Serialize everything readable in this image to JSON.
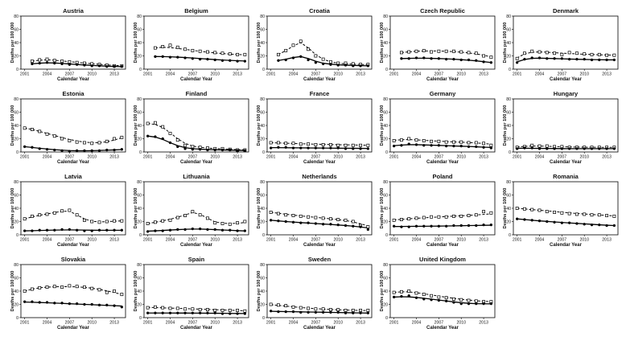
{
  "chart_data": {
    "type": "line",
    "small_multiples": true,
    "xlabel": "Calendar Year",
    "ylabel": "Deaths per 100 000",
    "xlim": [
      2000.5,
      2014.5
    ],
    "ylim": [
      0,
      80
    ],
    "xticks": [
      2001,
      2004,
      2007,
      2010,
      2013
    ],
    "yticks": [
      0,
      20,
      40,
      60,
      80
    ],
    "x": [
      2001,
      2002,
      2003,
      2004,
      2005,
      2006,
      2007,
      2008,
      2009,
      2010,
      2011,
      2012,
      2013,
      2014
    ],
    "series_styles": {
      "a": "filled circles with solid fitted line",
      "b": "open squares with dashed fitted line"
    },
    "panels": [
      {
        "title": "Austria",
        "start": 2002,
        "a": [
          8,
          9,
          10,
          9,
          8,
          7,
          7,
          6,
          5,
          5,
          4,
          4,
          4
        ],
        "fit_a": [
          8,
          9,
          9.5,
          9.3,
          8.6,
          7.8,
          7,
          6.3,
          5.6,
          5,
          4.5,
          4.1,
          3.8
        ],
        "b": [
          12,
          14,
          15,
          13,
          12,
          11,
          10,
          9,
          8,
          7,
          6,
          5,
          5
        ],
        "fit_b": [
          12,
          13.5,
          14,
          13.4,
          12.4,
          11.3,
          10.2,
          9.1,
          8.1,
          7.2,
          6.4,
          5.7,
          5.2
        ]
      },
      {
        "title": "Belgium",
        "start": 2002,
        "a": [
          19,
          19,
          18,
          18,
          17,
          16,
          15,
          15,
          14,
          13,
          13,
          12,
          12
        ],
        "fit_a": [
          19,
          18.9,
          18.6,
          18.1,
          17.5,
          16.8,
          16,
          15.2,
          14.5,
          13.8,
          13.2,
          12.7,
          12.3
        ],
        "b": [
          32,
          34,
          36,
          33,
          30,
          28,
          27,
          26,
          25,
          24,
          23,
          22,
          22
        ],
        "fit_b": [
          32,
          33,
          32.5,
          31.3,
          29.8,
          28.3,
          26.9,
          25.6,
          24.5,
          23.5,
          22.7,
          22.1,
          21.7
        ]
      },
      {
        "title": "Croatia",
        "start": 2002,
        "a": [
          13,
          14,
          17,
          19,
          14,
          10,
          8,
          7,
          6,
          6,
          5,
          5,
          5
        ],
        "fit_a": [
          13,
          15,
          17.5,
          19,
          16,
          12,
          9,
          7.5,
          6.5,
          6,
          5.6,
          5.3,
          5
        ],
        "b": [
          22,
          28,
          36,
          42,
          30,
          20,
          15,
          11,
          9,
          9,
          8,
          7,
          7
        ],
        "fit_b": [
          22,
          28,
          35,
          40,
          32,
          22,
          15,
          11,
          9,
          8,
          7.5,
          7,
          7
        ]
      },
      {
        "title": "Czech Republic",
        "start": 2002,
        "a": [
          16,
          16,
          17,
          17,
          16,
          16,
          15,
          15,
          14,
          14,
          13,
          11,
          10
        ],
        "fit_a": [
          16,
          16.3,
          16.5,
          16.5,
          16.3,
          16,
          15.6,
          15,
          14.3,
          13.5,
          12.5,
          11.3,
          10
        ],
        "b": [
          25,
          26,
          27,
          28,
          26,
          27,
          27,
          27,
          26,
          25,
          24,
          20,
          18
        ],
        "fit_b": [
          25,
          26,
          27,
          27.4,
          27.5,
          27.3,
          27,
          26.4,
          25.6,
          24.5,
          23,
          21,
          18.5
        ]
      },
      {
        "title": "Denmark",
        "start": 2001,
        "a": [
          10,
          15,
          17,
          17,
          16,
          16,
          16,
          15,
          15,
          15,
          14,
          14,
          14,
          14
        ],
        "fit_a": [
          11,
          14.5,
          16.3,
          16.6,
          16.3,
          16,
          15.6,
          15.2,
          14.9,
          14.6,
          14.4,
          14.2,
          14,
          14
        ],
        "b": [
          16,
          24,
          27,
          26,
          25,
          24,
          22,
          25,
          24,
          23,
          22,
          22,
          21,
          21
        ],
        "fit_b": [
          17,
          23,
          25.5,
          26,
          25.5,
          24.8,
          24.1,
          23.5,
          23,
          22.5,
          22.1,
          21.7,
          21.4,
          21.1
        ]
      },
      {
        "title": "Estonia",
        "start": 2001,
        "a": [
          8,
          7,
          5,
          4,
          3,
          2,
          1,
          2,
          2,
          2,
          2,
          3,
          3,
          4
        ],
        "fit_a": [
          8,
          6.8,
          5.6,
          4.5,
          3.5,
          2.7,
          2.1,
          1.8,
          1.8,
          2,
          2.3,
          2.7,
          3.1,
          3.6
        ],
        "b": [
          36,
          34,
          31,
          27,
          24,
          20,
          17,
          15,
          14,
          13,
          14,
          16,
          20,
          22
        ],
        "fit_b": [
          36,
          34,
          31,
          28,
          24.8,
          21.7,
          18.9,
          16.6,
          14.9,
          14,
          14.1,
          15.4,
          18,
          21.5
        ]
      },
      {
        "title": "Finland",
        "start": 2001,
        "a": [
          24,
          23,
          20,
          14,
          8,
          5,
          4,
          4,
          3,
          3,
          3,
          3,
          2,
          2
        ],
        "fit_a": [
          24,
          22.5,
          19,
          14,
          9.5,
          6.5,
          5,
          4.2,
          3.7,
          3.3,
          3,
          2.7,
          2.5,
          2.3
        ],
        "b": [
          43,
          44,
          38,
          28,
          18,
          10,
          8,
          7,
          6,
          5,
          5,
          4,
          3,
          3
        ],
        "fit_b": [
          43,
          41.5,
          37,
          29,
          20,
          13,
          9,
          7,
          6,
          5.2,
          4.6,
          4.1,
          3.6,
          3.2
        ]
      },
      {
        "title": "France",
        "start": 2001,
        "a": [
          6,
          7,
          7,
          6,
          6,
          6,
          6,
          6,
          6,
          6,
          5,
          5,
          5,
          5
        ],
        "fit_a": [
          6.5,
          6.5,
          6.4,
          6.3,
          6.2,
          6.1,
          6,
          5.9,
          5.8,
          5.7,
          5.6,
          5.5,
          5.4,
          5.3
        ],
        "b": [
          14,
          14,
          13,
          13,
          12,
          12,
          11,
          11,
          11,
          10,
          10,
          10,
          10,
          10
        ],
        "fit_b": [
          14,
          13.6,
          13.2,
          12.8,
          12.4,
          12.1,
          11.8,
          11.5,
          11.2,
          11,
          10.8,
          10.6,
          10.4,
          10.2
        ]
      },
      {
        "title": "Germany",
        "start": 2001,
        "a": [
          9,
          10,
          12,
          11,
          10,
          10,
          10,
          9,
          9,
          9,
          8,
          8,
          7,
          6
        ],
        "fit_a": [
          9.5,
          10.5,
          11,
          11,
          10.7,
          10.3,
          9.9,
          9.5,
          9.1,
          8.7,
          8.3,
          7.8,
          7.3,
          6.8
        ],
        "b": [
          17,
          18,
          20,
          18,
          17,
          16,
          16,
          15,
          15,
          15,
          14,
          14,
          13,
          10
        ],
        "fit_b": [
          17.5,
          18.5,
          18.7,
          18.3,
          17.6,
          16.9,
          16.3,
          15.7,
          15.2,
          14.7,
          14.2,
          13.6,
          12.8,
          11.8
        ]
      },
      {
        "title": "Hungary",
        "start": 2001,
        "a": [
          5,
          6,
          6,
          5,
          5,
          5,
          5,
          5,
          5,
          5,
          5,
          5,
          5,
          5
        ],
        "fit_a": [
          5.5,
          5.6,
          5.5,
          5.4,
          5.3,
          5.2,
          5.1,
          5,
          5,
          5,
          5,
          5,
          5,
          5
        ],
        "b": [
          7,
          8,
          10,
          9,
          9,
          8,
          8,
          7,
          7,
          7,
          7,
          7,
          7,
          7
        ],
        "fit_b": [
          7.5,
          8.5,
          9,
          8.9,
          8.6,
          8.2,
          7.9,
          7.6,
          7.4,
          7.2,
          7.1,
          7,
          7,
          7
        ]
      },
      {
        "title": "Latvia",
        "start": 2001,
        "a": [
          6,
          6,
          7,
          7,
          7,
          8,
          8,
          7,
          6,
          6,
          7,
          7,
          7,
          7
        ],
        "fit_a": [
          6,
          6.2,
          6.5,
          6.8,
          7.1,
          7.3,
          7.4,
          7.3,
          7.1,
          6.9,
          6.8,
          6.8,
          6.8,
          6.8
        ],
        "b": [
          24,
          28,
          30,
          31,
          33,
          36,
          37,
          30,
          22,
          20,
          19,
          20,
          21,
          21
        ],
        "fit_b": [
          24,
          27,
          29.5,
          31.5,
          33.5,
          35.5,
          35.5,
          30,
          24,
          20.5,
          19.5,
          19.8,
          20.5,
          21
        ]
      },
      {
        "title": "Lithuania",
        "start": 2001,
        "a": [
          5,
          6,
          6,
          7,
          8,
          8,
          9,
          9,
          8,
          8,
          7,
          7,
          6,
          6
        ],
        "fit_a": [
          5.5,
          6,
          6.6,
          7.2,
          7.8,
          8.3,
          8.6,
          8.6,
          8.3,
          7.8,
          7.3,
          6.8,
          6.3,
          5.8
        ],
        "b": [
          17,
          19,
          21,
          22,
          26,
          29,
          35,
          30,
          25,
          18,
          17,
          16,
          18,
          20
        ],
        "fit_b": [
          17,
          19,
          21,
          23.5,
          26.5,
          30,
          33.5,
          31,
          25,
          19.5,
          17.5,
          17,
          17.5,
          18.5
        ]
      },
      {
        "title": "Netherlands",
        "start": 2001,
        "a": [
          22,
          21,
          20,
          19,
          18,
          18,
          17,
          16,
          16,
          15,
          14,
          13,
          12,
          8
        ],
        "fit_a": [
          22,
          21,
          20,
          19.2,
          18.4,
          17.7,
          17,
          16.3,
          15.6,
          14.8,
          14,
          13,
          11.8,
          10.5
        ],
        "b": [
          34,
          32,
          30,
          29,
          28,
          27,
          26,
          25,
          24,
          23,
          22,
          20,
          14,
          12
        ],
        "fit_b": [
          34,
          32.5,
          31,
          29.7,
          28.5,
          27.4,
          26.3,
          25.2,
          24.1,
          22.9,
          21.5,
          19.5,
          16.5,
          13.5
        ]
      },
      {
        "title": "Poland",
        "start": 2001,
        "a": [
          13,
          12,
          12,
          13,
          13,
          13,
          13,
          13,
          14,
          14,
          14,
          14,
          15,
          15
        ],
        "fit_a": [
          12.5,
          12.6,
          12.7,
          12.8,
          12.9,
          13,
          13.1,
          13.3,
          13.5,
          13.7,
          13.9,
          14.1,
          14.3,
          14.5
        ],
        "b": [
          22,
          23,
          24,
          25,
          26,
          27,
          27,
          27,
          28,
          28,
          29,
          30,
          35,
          33
        ],
        "fit_b": [
          22.5,
          23.3,
          24.1,
          24.9,
          25.6,
          26.3,
          26.9,
          27.5,
          28.1,
          28.7,
          29.3,
          30,
          30.8,
          31.6
        ]
      },
      {
        "title": "Romania",
        "start": 2001,
        "a": [
          24,
          23,
          22,
          21,
          20,
          19,
          18,
          18,
          17,
          16,
          15,
          15,
          14,
          14
        ],
        "fit_a": [
          24,
          23,
          22,
          21,
          20.2,
          19.4,
          18.6,
          17.9,
          17.2,
          16.5,
          15.8,
          15.1,
          14.5,
          13.9
        ],
        "b": [
          40,
          39,
          38,
          37,
          35,
          34,
          33,
          32,
          31,
          31,
          30,
          30,
          29,
          28
        ],
        "fit_b": [
          40,
          39,
          38,
          37,
          36,
          35,
          34,
          33.1,
          32.2,
          31.4,
          30.6,
          29.9,
          29.2,
          28.5
        ]
      },
      {
        "title": "Slovakia",
        "start": 2001,
        "a": [
          24,
          24,
          23,
          23,
          22,
          22,
          21,
          21,
          20,
          20,
          19,
          19,
          18,
          16
        ],
        "fit_a": [
          23.5,
          23.2,
          22.8,
          22.4,
          22,
          21.5,
          21,
          20.5,
          20,
          19.5,
          19,
          18.5,
          18,
          17.5
        ],
        "b": [
          40,
          43,
          45,
          46,
          47,
          46,
          48,
          47,
          46,
          44,
          42,
          38,
          40,
          35
        ],
        "fit_b": [
          40,
          43,
          45,
          46,
          46.5,
          46.7,
          46.7,
          46.4,
          45.6,
          44.4,
          42.6,
          40.4,
          37.8,
          35
        ]
      },
      {
        "title": "Spain",
        "start": 2001,
        "a": [
          7,
          7,
          7,
          7,
          7,
          7,
          7,
          7,
          7,
          7,
          6,
          6,
          6,
          6
        ],
        "fit_a": [
          7,
          7,
          7,
          7,
          6.9,
          6.9,
          6.8,
          6.8,
          6.7,
          6.6,
          6.5,
          6.4,
          6.3,
          6.2
        ],
        "b": [
          15,
          16,
          15,
          14,
          14,
          13,
          13,
          12,
          12,
          11,
          11,
          11,
          11,
          10
        ],
        "fit_b": [
          15.5,
          15.2,
          14.8,
          14.4,
          14,
          13.6,
          13.2,
          12.8,
          12.4,
          12,
          11.6,
          11.2,
          10.8,
          10.4
        ]
      },
      {
        "title": "Sweden",
        "start": 2001,
        "a": [
          10,
          9,
          9,
          9,
          8,
          8,
          8,
          8,
          8,
          8,
          7,
          7,
          7,
          7
        ],
        "fit_a": [
          9.5,
          9.3,
          9.1,
          8.9,
          8.7,
          8.5,
          8.3,
          8.1,
          7.9,
          7.7,
          7.5,
          7.3,
          7.1,
          6.9
        ],
        "b": [
          20,
          19,
          18,
          16,
          15,
          14,
          13,
          13,
          12,
          12,
          11,
          11,
          11,
          11
        ],
        "fit_b": [
          19.5,
          18.5,
          17.4,
          16.3,
          15.3,
          14.4,
          13.6,
          12.9,
          12.3,
          11.8,
          11.4,
          11.1,
          10.9,
          10.7
        ]
      },
      {
        "title": "United Kingdom",
        "start": 2001,
        "a": [
          31,
          32,
          33,
          30,
          28,
          27,
          26,
          25,
          23,
          21,
          21,
          21,
          21,
          21
        ],
        "fit_a": [
          31,
          31.5,
          31.3,
          30.4,
          29.2,
          27.9,
          26.5,
          25.1,
          23.7,
          22.5,
          21.6,
          21.1,
          20.9,
          20.8
        ],
        "b": [
          38,
          39,
          40,
          37,
          35,
          33,
          31,
          30,
          28,
          27,
          26,
          25,
          24,
          24
        ],
        "fit_b": [
          38,
          39,
          38.8,
          37.6,
          36,
          34.2,
          32.4,
          30.7,
          29.1,
          27.7,
          26.5,
          25.5,
          24.7,
          24.1
        ]
      }
    ]
  }
}
